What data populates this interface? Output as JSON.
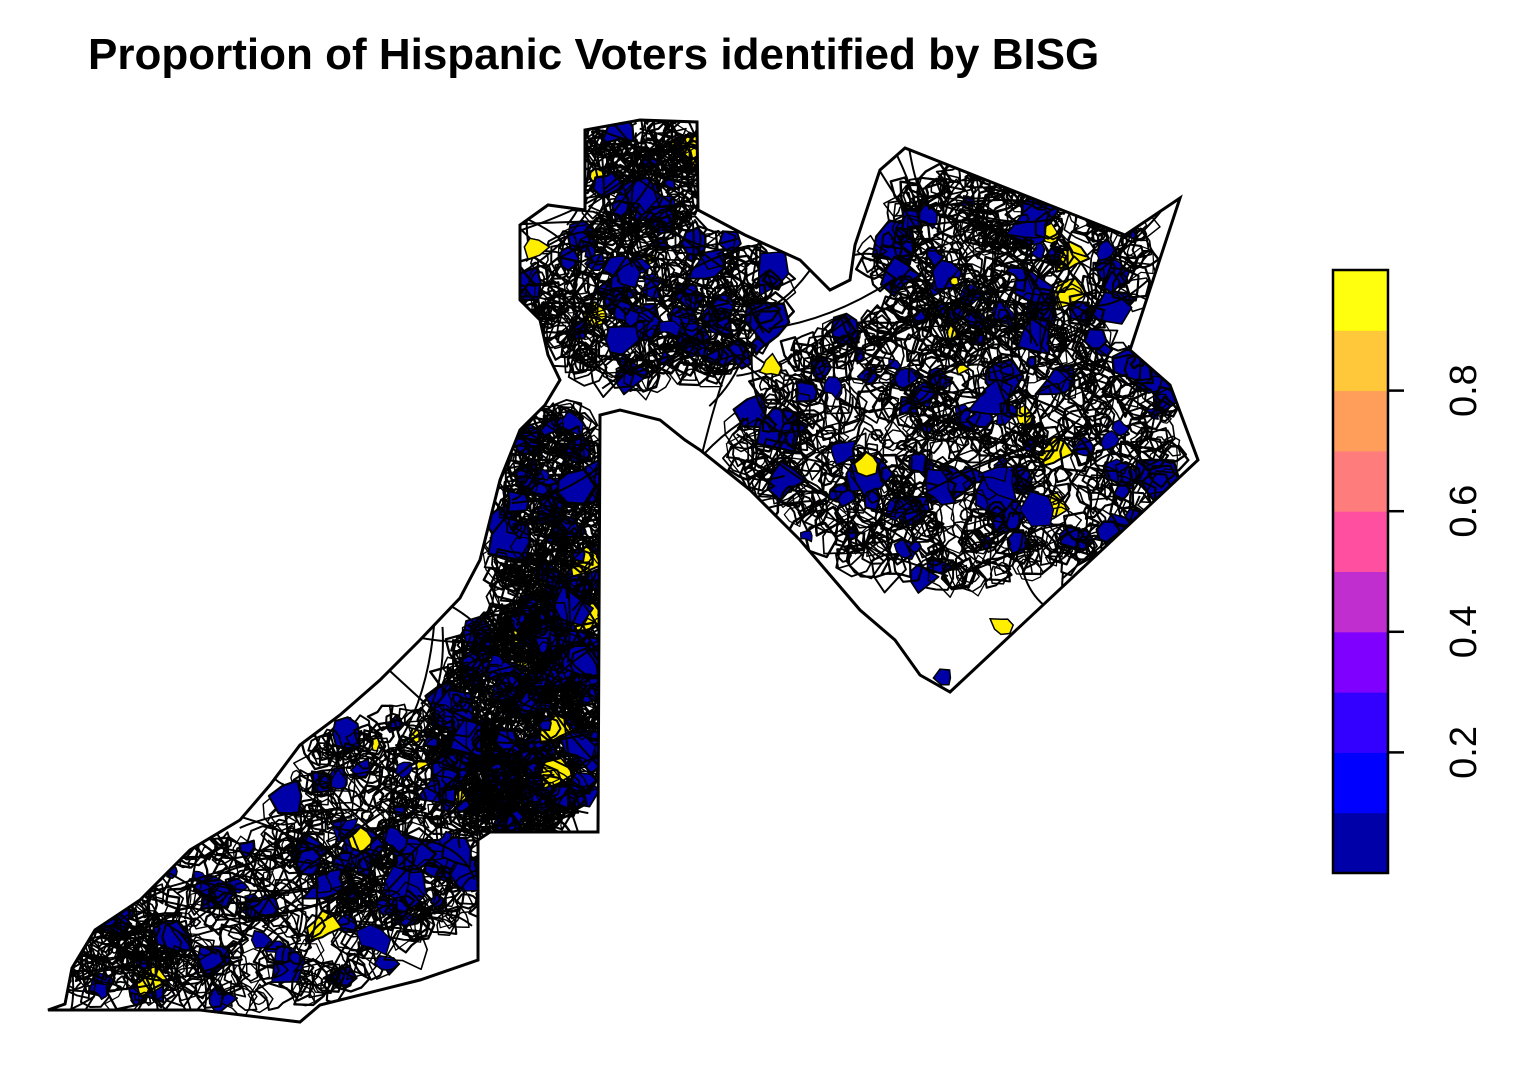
{
  "title": "Proportion of Hispanic Voters identified by BISG",
  "colors": {
    "boundary": "#000000",
    "background": "#ffffff",
    "low_fill": "#0000a8",
    "high_fill": "#ffee00"
  },
  "legend": {
    "bins": [
      "#0000A8",
      "#0000FF",
      "#3300FF",
      "#8000FF",
      "#C02ED0",
      "#FF4FA0",
      "#FF7C7C",
      "#FF9E5B",
      "#FFC83A",
      "#FFFF0E"
    ],
    "range": [
      0,
      1
    ],
    "ticks": [
      {
        "value": 0.2,
        "label": "0.2"
      },
      {
        "value": 0.4,
        "label": "0.4"
      },
      {
        "value": 0.6,
        "label": "0.6"
      },
      {
        "value": 0.8,
        "label": "0.8"
      }
    ]
  }
}
